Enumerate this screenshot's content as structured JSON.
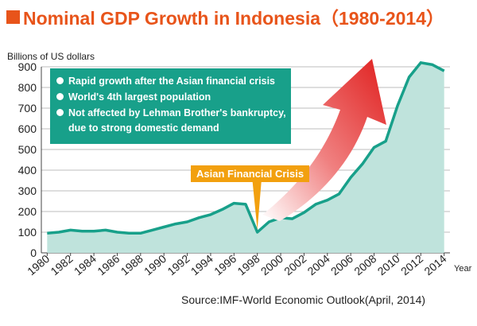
{
  "title": "Nominal GDP Growth in Indonesia（1980-2014）",
  "colors": {
    "accent": "#e8541a",
    "area_fill": "#bfe3dc",
    "area_line": "#18a08a",
    "callout_bg": "#18a08a",
    "crisis_bg": "#f2a00f",
    "arrow": "#e0201f"
  },
  "annotations": {
    "callout_items": [
      "Rapid growth after the Asian financial crisis",
      "World's 4th largest population",
      "Not affected by Lehman Brother's bankruptcy,"
    ],
    "callout_continuation": "due to strong domestic demand",
    "crisis_label": "Asian Financial Crisis"
  },
  "source": "Source:IMF-World Economic Outlook(April, 2014)",
  "chart_data": {
    "type": "area",
    "ylabel": "Billions of US dollars",
    "xlabel": "Year",
    "ylim": [
      0,
      900
    ],
    "yticks": [
      0,
      100,
      200,
      300,
      400,
      500,
      600,
      700,
      800,
      900
    ],
    "xlim": [
      1979.5,
      2014.5
    ],
    "xticks": [
      "1980",
      "1982",
      "1984",
      "1986",
      "1988",
      "1990",
      "1992",
      "1994",
      "1996",
      "1998",
      "2000",
      "2002",
      "2004",
      "2006",
      "2008",
      "2010",
      "2012",
      "2014"
    ],
    "grid": true,
    "x": [
      1980,
      1981,
      1982,
      1983,
      1984,
      1985,
      1986,
      1987,
      1988,
      1989,
      1990,
      1991,
      1992,
      1993,
      1994,
      1995,
      1996,
      1997,
      1998,
      1999,
      2000,
      2001,
      2002,
      2003,
      2004,
      2005,
      2006,
      2007,
      2008,
      2009,
      2010,
      2011,
      2012,
      2013,
      2014
    ],
    "series": [
      {
        "values": [
          95,
          100,
          110,
          105,
          105,
          110,
          100,
          95,
          95,
          110,
          125,
          140,
          150,
          170,
          185,
          210,
          240,
          235,
          100,
          150,
          170,
          165,
          195,
          235,
          255,
          285,
          365,
          430,
          510,
          540,
          710,
          850,
          920,
          910,
          880
        ]
      }
    ]
  }
}
